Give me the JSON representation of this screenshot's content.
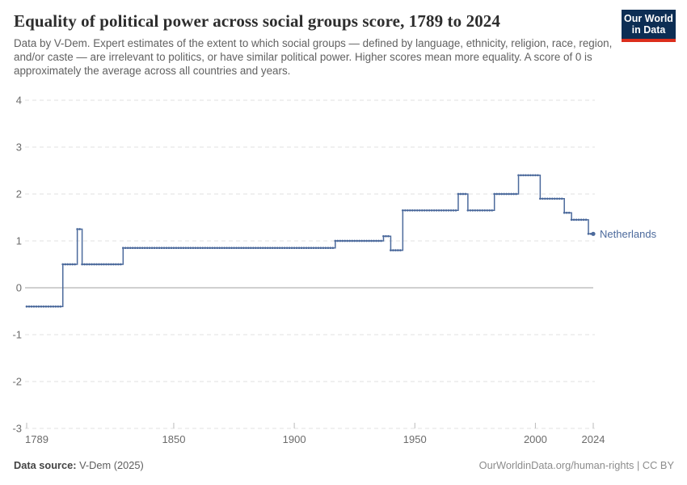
{
  "header": {
    "title": "Equality of political power across social groups score, 1789 to 2024",
    "subtitle": "Data by V-Dem. Expert estimates of the extent to which social groups — defined by language, ethnicity, religion, race, region, and/or caste — are irrelevant to politics, or have similar political power. Higher scores mean more equality. A score of 0 is approximately the average across all countries and years.",
    "logo": {
      "line1": "Our World",
      "line2": "in Data",
      "bg_color": "#0d2e54",
      "accent_color": "#dc2e1c"
    }
  },
  "chart_data": {
    "type": "line",
    "line_style": "step-after-with-yearly-markers",
    "title": "Equality of political power across social groups score, 1789 to 2024",
    "xlabel": "",
    "ylabel": "",
    "xlim": [
      1789,
      2024
    ],
    "ylim": [
      -3,
      4
    ],
    "x_ticks": [
      1789,
      1850,
      1900,
      1950,
      2000,
      2024
    ],
    "y_ticks": [
      4,
      3,
      2,
      1,
      0,
      -1,
      -2,
      -3
    ],
    "grid": "dashed-horizontal",
    "zero_line": true,
    "legend_position": "end-of-line-label",
    "series": [
      {
        "name": "Netherlands",
        "color": "#4c6a9c",
        "segments": [
          {
            "from": 1789,
            "to": 1803,
            "value": -0.4
          },
          {
            "from": 1804,
            "to": 1809,
            "value": 0.5
          },
          {
            "from": 1810,
            "to": 1811,
            "value": 1.25
          },
          {
            "from": 1812,
            "to": 1828,
            "value": 0.5
          },
          {
            "from": 1829,
            "to": 1916,
            "value": 0.85
          },
          {
            "from": 1917,
            "to": 1936,
            "value": 1.0
          },
          {
            "from": 1937,
            "to": 1939,
            "value": 1.1
          },
          {
            "from": 1940,
            "to": 1944,
            "value": 0.8
          },
          {
            "from": 1945,
            "to": 1967,
            "value": 1.65
          },
          {
            "from": 1968,
            "to": 1971,
            "value": 2.0
          },
          {
            "from": 1972,
            "to": 1982,
            "value": 1.65
          },
          {
            "from": 1983,
            "to": 1992,
            "value": 2.0
          },
          {
            "from": 1993,
            "to": 2001,
            "value": 2.4
          },
          {
            "from": 2002,
            "to": 2011,
            "value": 1.9
          },
          {
            "from": 2012,
            "to": 2014,
            "value": 1.6
          },
          {
            "from": 2015,
            "to": 2021,
            "value": 1.45
          },
          {
            "from": 2022,
            "to": 2024,
            "value": 1.15
          }
        ]
      }
    ],
    "colors": {
      "gridline": "#e2e2e2",
      "zero_line": "#a0a0a0",
      "tick_label": "#6b6b6b",
      "tick_mark": "#bbbbbb"
    }
  },
  "footer": {
    "source_label": "Data source:",
    "source_value": " V-Dem (2025)",
    "credit": "OurWorldinData.org/human-rights | CC BY"
  }
}
